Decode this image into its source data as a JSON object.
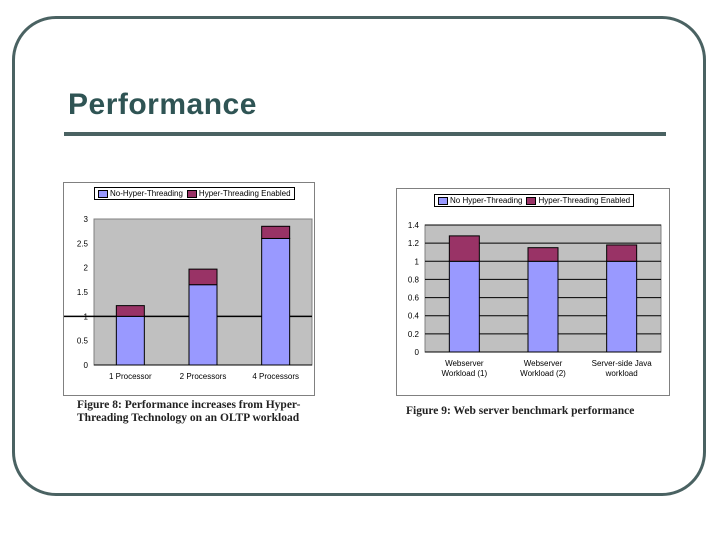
{
  "slide": {
    "title": "Performance",
    "colors": {
      "frame": "#4a6262",
      "title": "#2f5454"
    }
  },
  "figure1": {
    "caption": "Figure 8:  Performance increases from Hyper-Threading Technology on an OLTP workload"
  },
  "figure2": {
    "caption": "Figure 9: Web server benchmark performance"
  },
  "chart_data": [
    {
      "type": "bar",
      "stacked": true,
      "categories": [
        "1 Processor",
        "2 Processors",
        "4 Processors"
      ],
      "series": [
        {
          "name": "No-Hyper-Threading",
          "values": [
            1.0,
            1.65,
            2.6
          ],
          "color": "#9999ff"
        },
        {
          "name": "Hyper-Threading Enabled",
          "values": [
            0.22,
            0.32,
            0.25
          ],
          "color": "#993366"
        }
      ],
      "ylim": [
        0,
        3
      ],
      "yticks": [
        "0",
        "0.5",
        "1",
        "1.5",
        "2",
        "2.5",
        "3"
      ],
      "grid": false,
      "legend": "top",
      "title": "",
      "xlabel": "",
      "ylabel": ""
    },
    {
      "type": "bar",
      "stacked": true,
      "categories": [
        [
          "Webserver",
          "Workload (1)"
        ],
        [
          "Webserver",
          "Workload (2)"
        ],
        [
          "Server-side Java",
          "workload"
        ]
      ],
      "series": [
        {
          "name": "No Hyper-Threading",
          "values": [
            1.0,
            1.0,
            1.0
          ],
          "color": "#9999ff"
        },
        {
          "name": "Hyper-Threading Enabled",
          "values": [
            0.28,
            0.15,
            0.18
          ],
          "color": "#993366"
        }
      ],
      "ylim": [
        0,
        1.4
      ],
      "yticks": [
        "0",
        "0.2",
        "0.4",
        "0.6",
        "0.8",
        "1",
        "1.2",
        "1.4"
      ],
      "grid": true,
      "legend": "top",
      "title": "",
      "xlabel": "",
      "ylabel": ""
    }
  ]
}
